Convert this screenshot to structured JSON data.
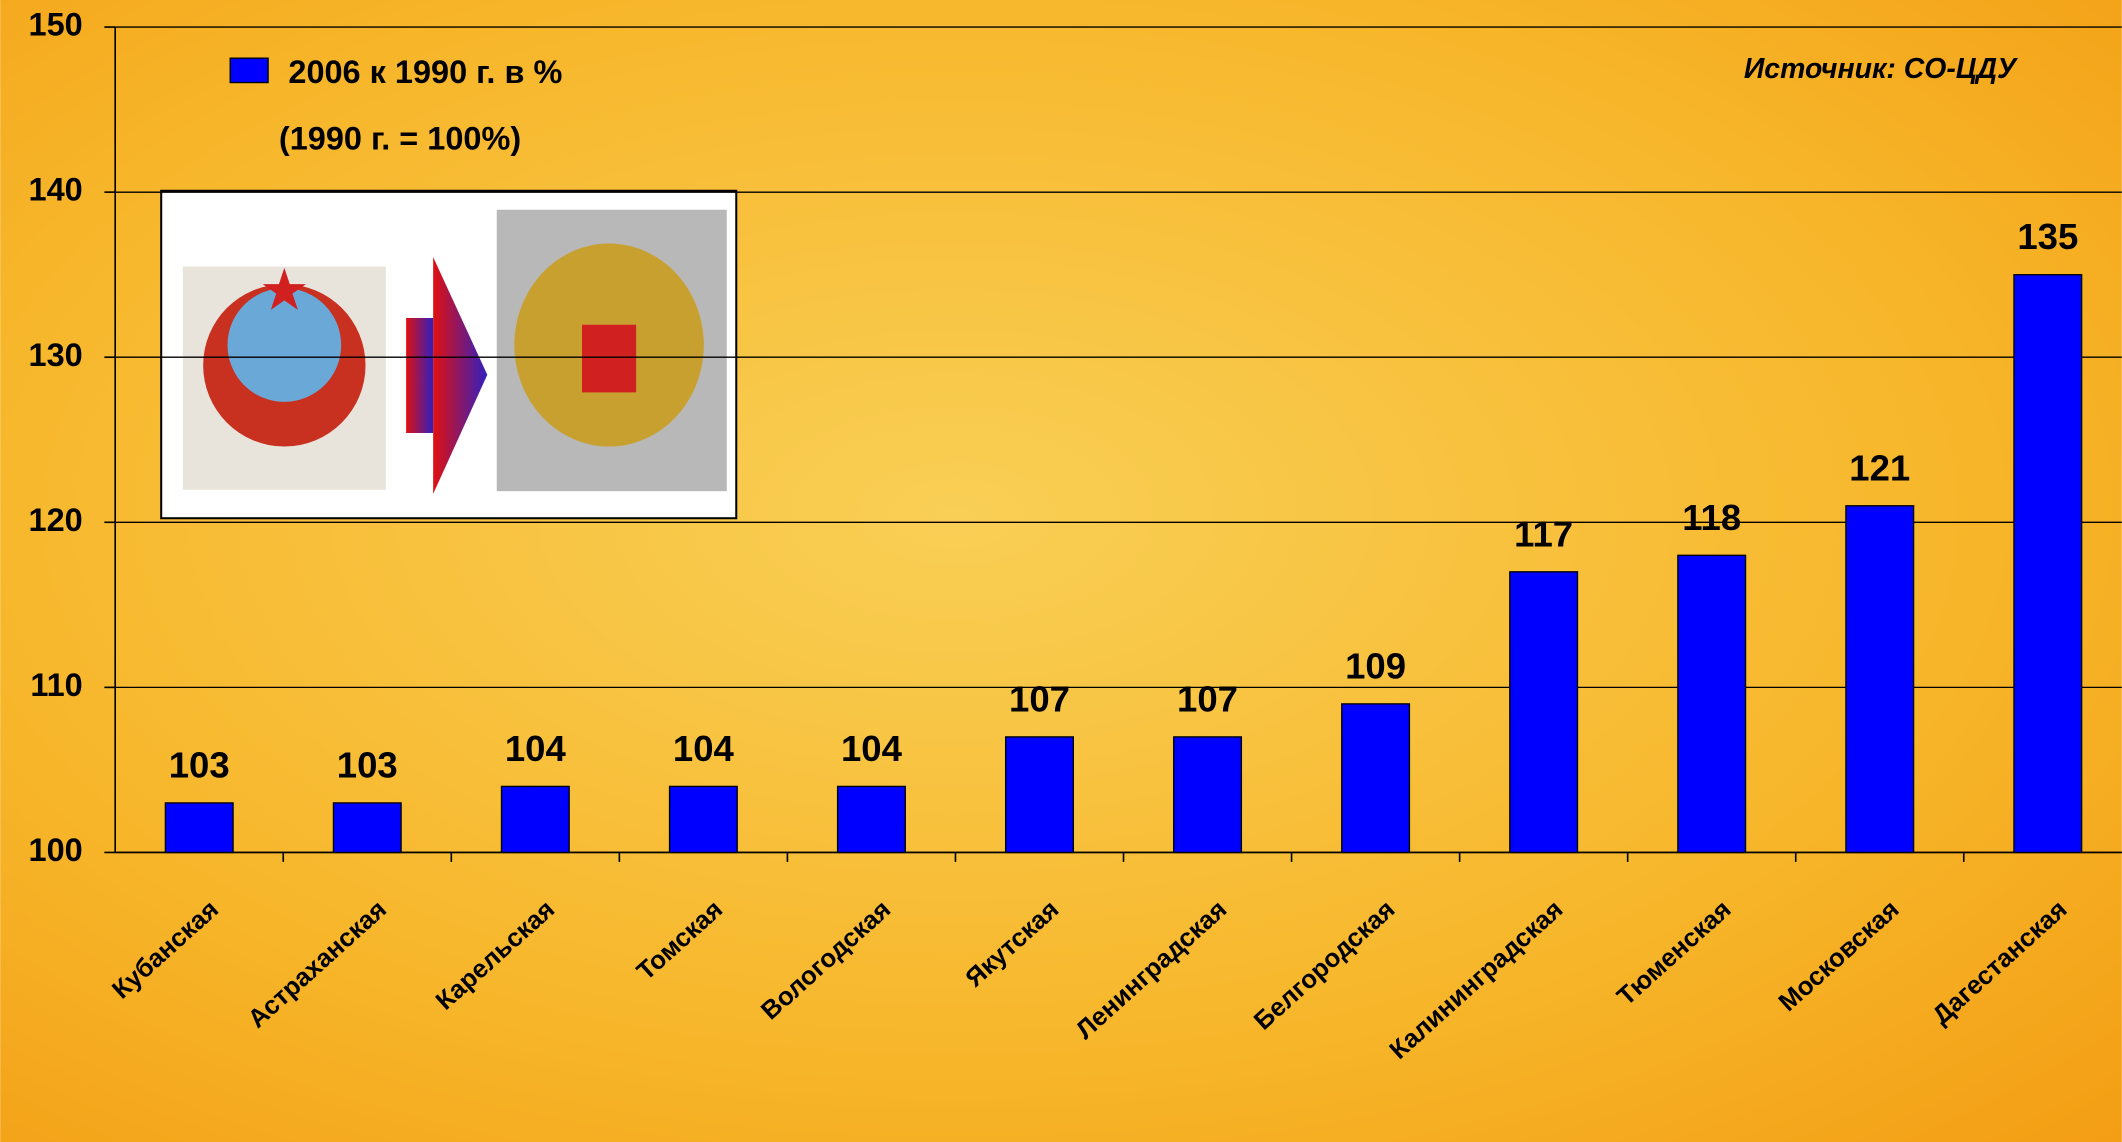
{
  "chart_data": {
    "type": "bar",
    "legend_label": "2006 к 1990 г. в %",
    "subtitle": "(1990 г. = 100%)",
    "source": "Источник: СО-ЦДУ",
    "categories": [
      "Кубанская",
      "Астраханская",
      "Карельская",
      "Томская",
      "Вологодская",
      "Якутская",
      "Ленинградская",
      "Белгородская",
      "Калининградская",
      "Тюменская",
      "Московская",
      "Дагестанская"
    ],
    "values": [
      103,
      103,
      104,
      104,
      104,
      107,
      107,
      109,
      117,
      118,
      121,
      135
    ],
    "color": "#0000ff",
    "ylim": [
      100,
      150
    ],
    "yticks": [
      100,
      110,
      120,
      130,
      140,
      150
    ],
    "grid": true,
    "legend": "top-left"
  }
}
